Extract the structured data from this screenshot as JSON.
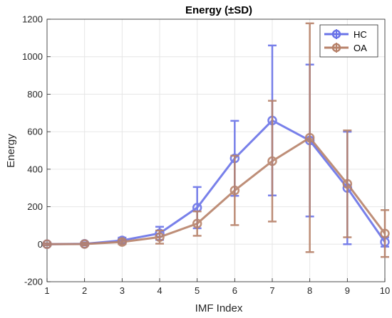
{
  "chart_data": {
    "type": "line",
    "title": "Energy (±SD)",
    "xlabel": "IMF Index",
    "ylabel": "Energy",
    "xlim": [
      1,
      10
    ],
    "ylim": [
      -200,
      1200
    ],
    "x_ticks": [
      "1",
      "2",
      "3",
      "4",
      "5",
      "6",
      "7",
      "8",
      "9",
      "10"
    ],
    "y_ticks": [
      "-200",
      "0",
      "200",
      "400",
      "600",
      "800",
      "1000",
      "1200"
    ],
    "grid": true,
    "legend_position": "top-right",
    "x": [
      1,
      2,
      3,
      4,
      5,
      6,
      7,
      8,
      9,
      10
    ],
    "series": [
      {
        "name": "HC",
        "color": "#6a73e8",
        "values": [
          0,
          2,
          20,
          58,
          195,
          458,
          660,
          553,
          300,
          12
        ],
        "sd": [
          5,
          8,
          15,
          35,
          110,
          200,
          400,
          405,
          300,
          25
        ]
      },
      {
        "name": "OA",
        "color": "#b7826a",
        "values": [
          0,
          1,
          12,
          38,
          110,
          287,
          443,
          568,
          322,
          57
        ],
        "sd": [
          5,
          7,
          12,
          35,
          65,
          185,
          322,
          610,
          285,
          125
        ]
      }
    ]
  }
}
